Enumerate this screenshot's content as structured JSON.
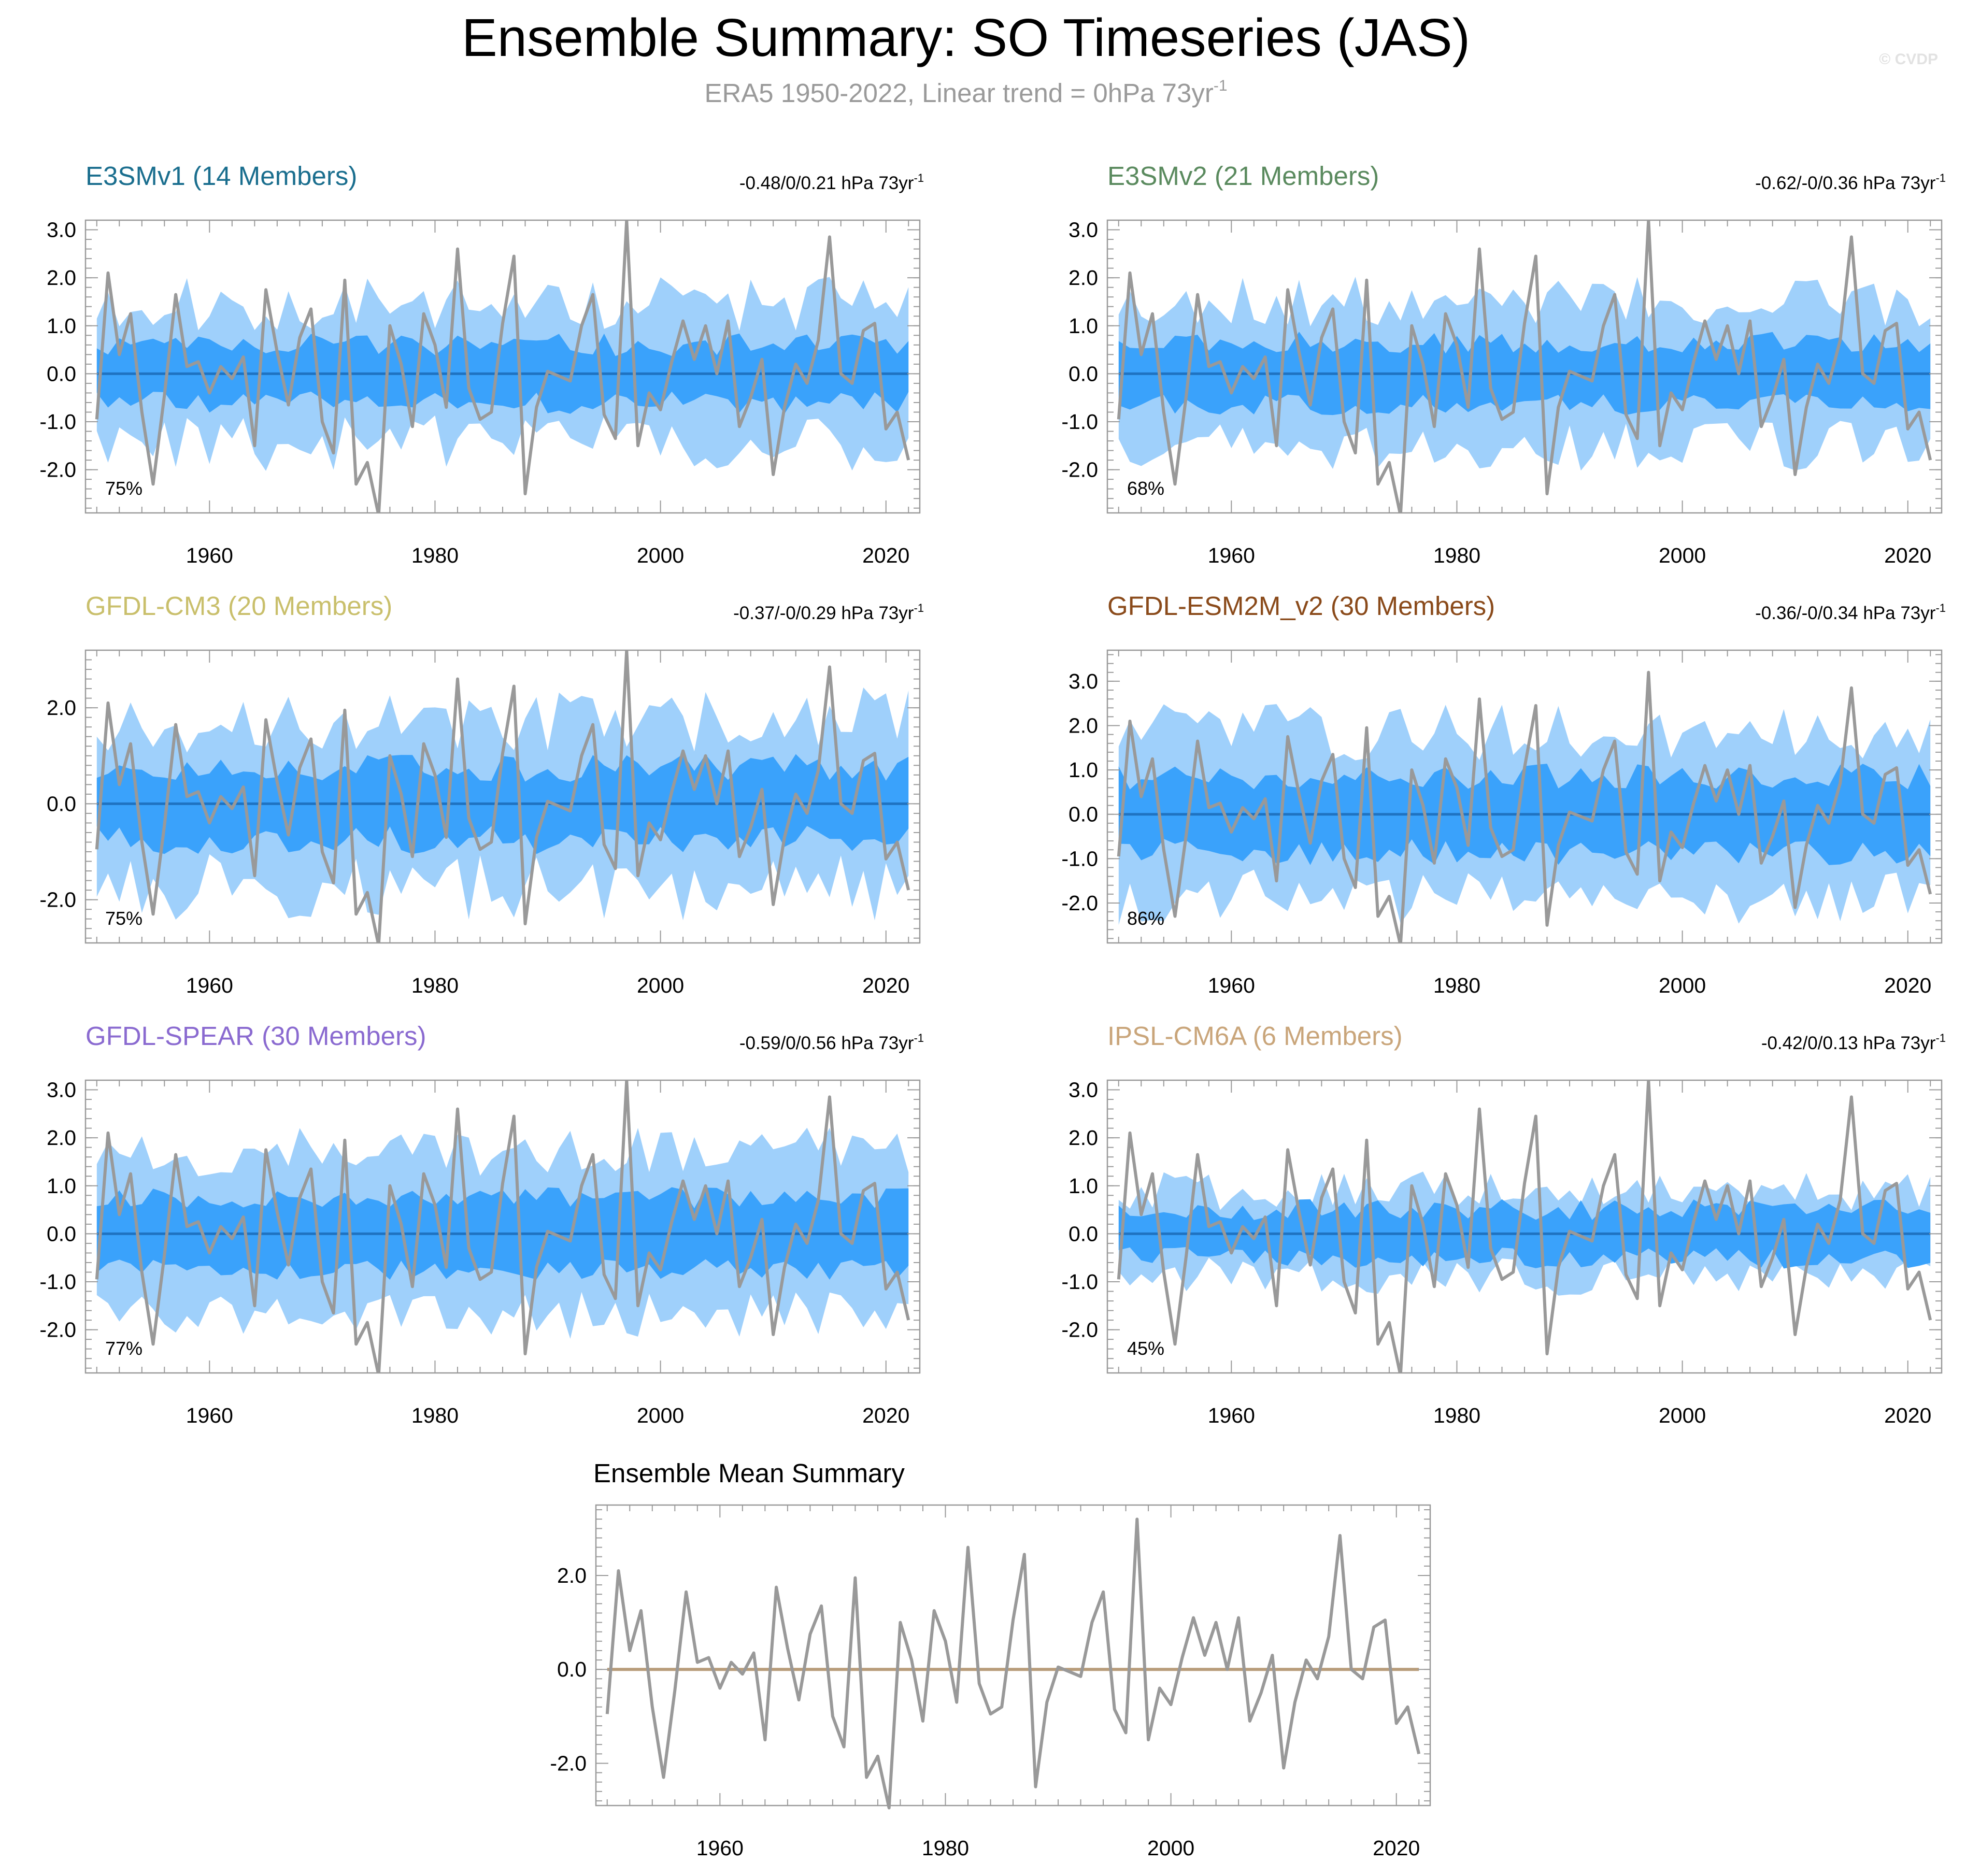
{
  "title": "Ensemble Summary: SO Timeseries (JAS)",
  "subtitle": {
    "text": "ERA5 1950-2022, Linear trend = 0hPa 73yr",
    "superscript": "-1"
  },
  "credit": "© CVDP",
  "colors": {
    "outer_band": "#9fd0fb",
    "inner_band": "#3aa2fb",
    "mean_line": "#1f73c2",
    "obs_line": "#999999",
    "summary_zero": "#b89c7a",
    "frame": "#9a9a9a"
  },
  "chart_data": {
    "type": "line",
    "x_start": 1950,
    "x_end": 2022,
    "xlim": [
      1949,
      2023
    ],
    "x_ticks": [
      1960,
      1980,
      2000,
      2020
    ],
    "x_tick_labels": [
      "1960",
      "1980",
      "2000",
      "2020"
    ],
    "observed": {
      "name": "ERA5",
      "years": [
        1950,
        1951,
        1952,
        1953,
        1954,
        1955,
        1956,
        1957,
        1958,
        1959,
        1960,
        1961,
        1962,
        1963,
        1964,
        1965,
        1966,
        1967,
        1968,
        1969,
        1970,
        1971,
        1972,
        1973,
        1974,
        1975,
        1976,
        1977,
        1978,
        1979,
        1980,
        1981,
        1982,
        1983,
        1984,
        1985,
        1986,
        1987,
        1988,
        1989,
        1990,
        1991,
        1992,
        1993,
        1994,
        1995,
        1996,
        1997,
        1998,
        1999,
        2000,
        2001,
        2002,
        2003,
        2004,
        2005,
        2006,
        2007,
        2008,
        2009,
        2010,
        2011,
        2012,
        2013,
        2014,
        2015,
        2016,
        2017,
        2018,
        2019,
        2020,
        2021,
        2022
      ],
      "values": [
        -0.95,
        2.1,
        0.4,
        1.25,
        -0.8,
        -2.3,
        -0.45,
        1.65,
        0.15,
        0.25,
        -0.4,
        0.15,
        -0.1,
        0.35,
        -1.5,
        1.75,
        0.45,
        -0.65,
        0.75,
        1.35,
        -1.0,
        -1.65,
        1.95,
        -2.3,
        -1.85,
        -2.95,
        1.0,
        0.2,
        -1.1,
        1.25,
        0.6,
        -0.7,
        2.6,
        -0.3,
        -0.95,
        -0.8,
        1.05,
        2.45,
        -2.5,
        -0.7,
        0.05,
        -0.05,
        -0.15,
        1.0,
        1.65,
        -0.85,
        -1.35,
        3.2,
        -1.5,
        -0.4,
        -0.75,
        0.25,
        1.1,
        0.3,
        1.0,
        0.0,
        1.1,
        -1.1,
        -0.5,
        0.3,
        -2.1,
        -0.7,
        0.2,
        -0.2,
        0.7,
        2.85,
        0.0,
        -0.2,
        0.9,
        1.05,
        -1.15,
        -0.8,
        -1.8
      ]
    },
    "panels": [
      {
        "model": "E3SMv1",
        "title": "E3SMv1 (14 Members)",
        "title_color": "#1a6e8e",
        "trend_label": "-0.48/0/0.21 hPa 73yr",
        "trend_superscript": "-1",
        "percent_label": "75%",
        "ylim": [
          -2.9,
          3.2
        ],
        "y_ticks": [
          -2,
          -1,
          0,
          1,
          2,
          3
        ],
        "y_tick_labels": [
          "-2.0",
          "-1.0",
          "0.0",
          "1.0",
          "2.0",
          "3.0"
        ],
        "band_seed": 11,
        "inner_spread": 0.6,
        "outer_spread": 1.45,
        "variability": 0.4
      },
      {
        "model": "E3SMv2",
        "title": "E3SMv2 (21 Members)",
        "title_color": "#5a8a5e",
        "trend_label": "-0.62/-0/0.36 hPa 73yr",
        "trend_superscript": "-1",
        "percent_label": "68%",
        "ylim": [
          -2.9,
          3.2
        ],
        "y_ticks": [
          -2,
          -1,
          0,
          1,
          2,
          3
        ],
        "y_tick_labels": [
          "-2.0",
          "-1.0",
          "0.0",
          "1.0",
          "2.0",
          "3.0"
        ],
        "band_seed": 23,
        "inner_spread": 0.65,
        "outer_spread": 1.5,
        "variability": 0.35
      },
      {
        "model": "GFDL-CM3",
        "title": "GFDL-CM3 (20 Members)",
        "title_color": "#c9bf6b",
        "trend_label": "-0.37/-0/0.29 hPa 73yr",
        "trend_superscript": "-1",
        "percent_label": "75%",
        "ylim": [
          -2.9,
          3.2
        ],
        "y_ticks": [
          -2,
          0,
          2
        ],
        "y_tick_labels": [
          "-2.0",
          "0.0",
          "2.0"
        ],
        "band_seed": 37,
        "inner_spread": 0.75,
        "outer_spread": 1.75,
        "variability": 0.4
      },
      {
        "model": "GFDL-ESM2M_v2",
        "title": "GFDL-ESM2M_v2 (30 Members)",
        "title_color": "#8a4a1a",
        "trend_label": "-0.36/-0/0.34 hPa 73yr",
        "trend_superscript": "-1",
        "percent_label": "86%",
        "ylim": [
          -2.9,
          3.7
        ],
        "y_ticks": [
          -2,
          -1,
          0,
          1,
          2,
          3
        ],
        "y_tick_labels": [
          "-2.0",
          "-1.0",
          "0.0",
          "1.0",
          "2.0",
          "3.0"
        ],
        "band_seed": 41,
        "inner_spread": 0.85,
        "outer_spread": 1.85,
        "variability": 0.35
      },
      {
        "model": "GFDL-SPEAR",
        "title": "GFDL-SPEAR (30 Members)",
        "title_color": "#8a6ad0",
        "trend_label": "-0.59/0/0.56 hPa 73yr",
        "trend_superscript": "-1",
        "percent_label": "77%",
        "ylim": [
          -2.9,
          3.2
        ],
        "y_ticks": [
          -2,
          -1,
          0,
          1,
          2,
          3
        ],
        "y_tick_labels": [
          "-2.0",
          "-1.0",
          "0.0",
          "1.0",
          "2.0",
          "3.0"
        ],
        "band_seed": 53,
        "inner_spread": 0.75,
        "outer_spread": 1.7,
        "variability": 0.3
      },
      {
        "model": "IPSL-CM6A",
        "title": "IPSL-CM6A (6 Members)",
        "title_color": "#c9a57a",
        "trend_label": "-0.42/0/0.13 hPa 73yr",
        "trend_superscript": "-1",
        "percent_label": "45%",
        "ylim": [
          -2.9,
          3.2
        ],
        "y_ticks": [
          -2,
          -1,
          0,
          1,
          2,
          3
        ],
        "y_tick_labels": [
          "-2.0",
          "-1.0",
          "0.0",
          "1.0",
          "2.0",
          "3.0"
        ],
        "band_seed": 67,
        "inner_spread": 0.5,
        "outer_spread": 0.9,
        "variability": 0.45
      }
    ],
    "summary": {
      "title": "Ensemble Mean Summary",
      "ylim": [
        -2.9,
        3.5
      ],
      "y_ticks": [
        -2,
        0,
        2
      ],
      "y_tick_labels": [
        "-2.0",
        "0.0",
        "2.0"
      ],
      "ensemble_mean_value": 0.0
    }
  }
}
